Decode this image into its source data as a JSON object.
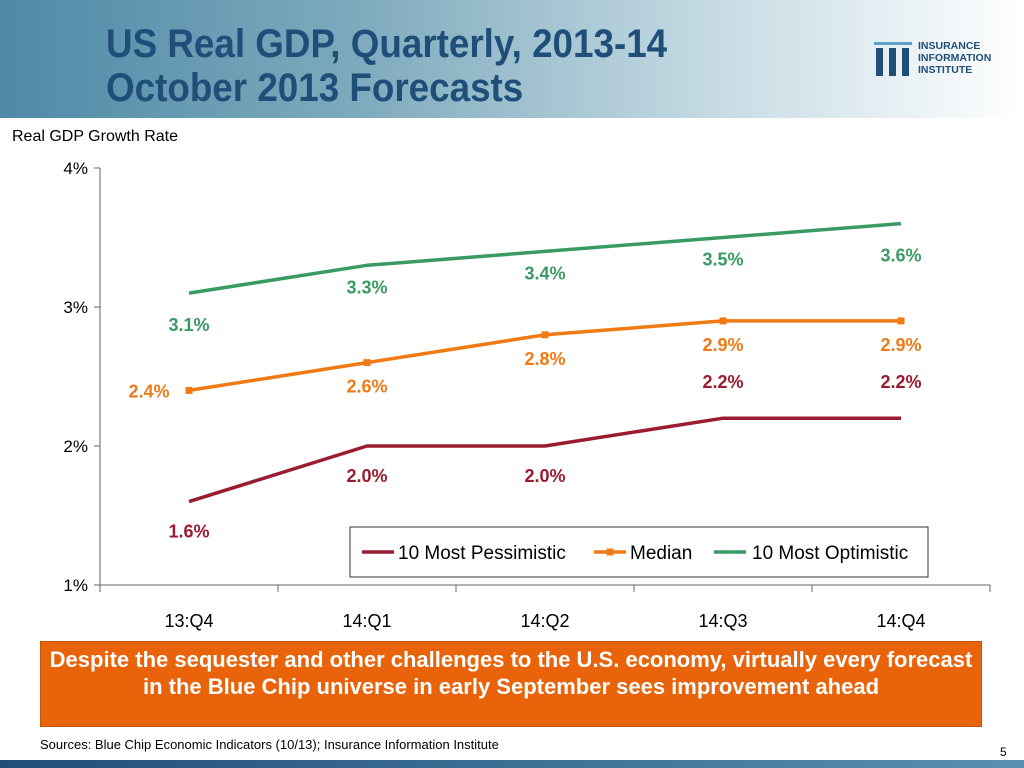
{
  "header": {
    "title_line1": "US Real GDP, Quarterly, 2013-14",
    "title_line2": "October 2013 Forecasts"
  },
  "logo": {
    "line1": "INSURANCE",
    "line2": "INFORMATION",
    "line3": "INSTITUTE",
    "mark": "iii"
  },
  "chart_data": {
    "type": "line",
    "ylabel": "Real GDP Growth Rate",
    "categories": [
      "13:Q4",
      "14:Q1",
      "14:Q2",
      "14:Q3",
      "14:Q4"
    ],
    "ylim": [
      1,
      4
    ],
    "yticks": [
      1,
      2,
      3,
      4
    ],
    "ytick_labels": [
      "1%",
      "2%",
      "3%",
      "4%"
    ],
    "grid": false,
    "legend_position": "bottom-right",
    "series": [
      {
        "name": "10 Most Pessimistic",
        "values": [
          1.6,
          2.0,
          2.0,
          2.2,
          2.2
        ],
        "labels": [
          "1.6%",
          "2.0%",
          "2.0%",
          "2.2%",
          "2.2%"
        ],
        "color": "#9b1b30",
        "marker": "none"
      },
      {
        "name": "Median",
        "values": [
          2.4,
          2.6,
          2.8,
          2.9,
          2.9
        ],
        "labels": [
          "2.4%",
          "2.6%",
          "2.8%",
          "2.9%",
          "2.9%"
        ],
        "color": "#f07a14",
        "marker": "square"
      },
      {
        "name": "10 Most Optimistic",
        "values": [
          3.1,
          3.3,
          3.4,
          3.5,
          3.6
        ],
        "labels": [
          "3.1%",
          "3.3%",
          "3.4%",
          "3.5%",
          "3.6%"
        ],
        "color": "#3a9a63",
        "marker": "none"
      }
    ]
  },
  "callout": {
    "text": "Despite the sequester and other challenges to the U.S. economy, virtually every forecast in the Blue Chip universe in early September sees improvement ahead"
  },
  "footer": {
    "source": "Sources: Blue Chip Economic Indicators (10/13); Insurance Information Institute",
    "slide_number": "5"
  }
}
